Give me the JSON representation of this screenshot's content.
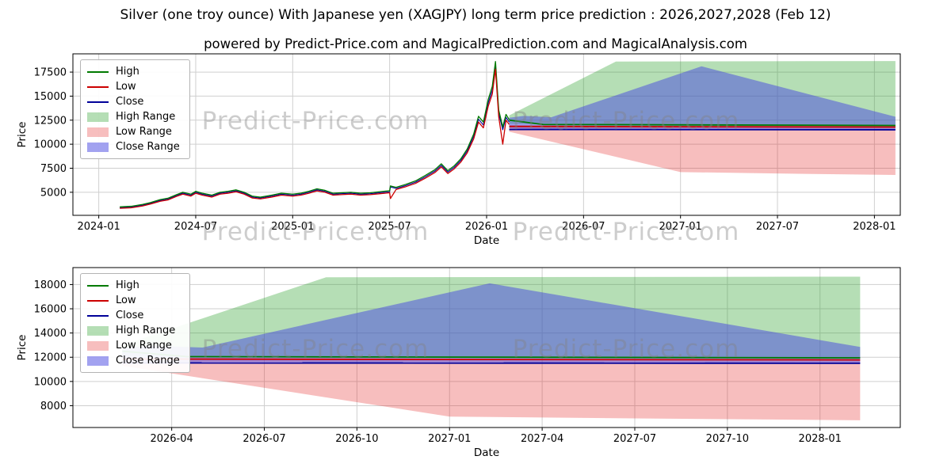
{
  "page": {
    "title": "Silver (one troy ounce) With Japanese yen (XAGJPY) long term price prediction : 2026,2027,2028 (Feb 12)",
    "subtitle": "powered by Predict-Price.com and MagicalPrediction.com and MagicalAnalysis.com",
    "watermark": "Predict-Price.com"
  },
  "colors": {
    "high": "#007a00",
    "low": "#cc0000",
    "close": "#000099",
    "high_range": "rgba(44,160,44,0.35)",
    "low_range": "rgba(230,40,40,0.30)",
    "close_range": "rgba(70,70,225,0.50)"
  },
  "chart_data": [
    {
      "type": "line",
      "title": "",
      "xlabel": "Date",
      "ylabel": "Price",
      "x_unit": "months since 2024-01",
      "xlim": [
        -1.6,
        49.6
      ],
      "ylim": [
        2600,
        19400
      ],
      "grid": true,
      "legend_position": "upper-left",
      "x_ticks": [
        {
          "v": 0,
          "label": "2024-01"
        },
        {
          "v": 6,
          "label": "2024-07"
        },
        {
          "v": 12,
          "label": "2025-01"
        },
        {
          "v": 18,
          "label": "2025-07"
        },
        {
          "v": 24,
          "label": "2026-01"
        },
        {
          "v": 30,
          "label": "2026-07"
        },
        {
          "v": 36,
          "label": "2027-01"
        },
        {
          "v": 42,
          "label": "2027-07"
        },
        {
          "v": 48,
          "label": "2028-01"
        }
      ],
      "y_ticks": [
        5000,
        7500,
        10000,
        12500,
        15000,
        17500
      ],
      "legend": [
        {
          "label": "High",
          "kind": "line",
          "color": "high"
        },
        {
          "label": "Low",
          "kind": "line",
          "color": "low"
        },
        {
          "label": "Close",
          "kind": "line",
          "color": "close"
        },
        {
          "label": "High Range",
          "kind": "patch",
          "color": "high_range"
        },
        {
          "label": "Low Range",
          "kind": "patch",
          "color": "low_range"
        },
        {
          "label": "Close Range",
          "kind": "patch",
          "color": "close_range"
        }
      ],
      "bands": [
        {
          "name": "High Range",
          "color": "high_range",
          "x": [
            25.4,
            32.0,
            49.3
          ],
          "upper": [
            13000,
            18600,
            18650
          ],
          "lower": [
            12100,
            11950,
            11850
          ]
        },
        {
          "name": "Low Range",
          "color": "low_range",
          "x": [
            25.4,
            36.0,
            42.0,
            49.3
          ],
          "upper": [
            12000,
            11850,
            11800,
            11750
          ],
          "lower": [
            11300,
            7100,
            6950,
            6800
          ]
        },
        {
          "name": "Close Range",
          "color": "close_range",
          "x": [
            25.4,
            26.3,
            28.0,
            37.3,
            49.3
          ],
          "upper": [
            12750,
            12950,
            12800,
            18100,
            12850
          ],
          "lower": [
            11650,
            11600,
            11550,
            11500,
            11500
          ]
        }
      ],
      "lines": [
        {
          "name": "Close history",
          "color": "close",
          "width": 1.1,
          "x": [
            1.3,
            2.0,
            2.7,
            3.2,
            3.8,
            4.3,
            4.8,
            5.2,
            5.7,
            6.0,
            6.4,
            7.0,
            7.5,
            8.0,
            8.5,
            9.0,
            9.5,
            10.0,
            10.7,
            11.3,
            12.0,
            12.5,
            13.0,
            13.5,
            14.0,
            14.5,
            15.0,
            15.6,
            16.2,
            16.8,
            17.4,
            18.0,
            18.05,
            18.4,
            19.0,
            19.6,
            20.2,
            20.8,
            21.2,
            21.6,
            22.0,
            22.4,
            22.8,
            23.2,
            23.5,
            23.8,
            24.1,
            24.35,
            24.55,
            24.75,
            25.0,
            25.2,
            25.4
          ],
          "y": [
            3400,
            3450,
            3650,
            3850,
            4150,
            4300,
            4650,
            4900,
            4700,
            5000,
            4800,
            4600,
            4900,
            5000,
            5150,
            4900,
            4500,
            4400,
            4600,
            4800,
            4700,
            4800,
            5000,
            5250,
            5100,
            4800,
            4850,
            4900,
            4800,
            4850,
            4950,
            5050,
            5550,
            5400,
            5700,
            6050,
            6600,
            7200,
            7800,
            7100,
            7600,
            8300,
            9300,
            10800,
            12600,
            12000,
            14300,
            15600,
            18200,
            13200,
            11500,
            12800,
            12300
          ]
        },
        {
          "name": "High history",
          "color": "high",
          "width": 1.3,
          "x": [
            1.3,
            2.0,
            2.7,
            3.2,
            3.8,
            4.3,
            4.8,
            5.2,
            5.7,
            6.0,
            6.4,
            7.0,
            7.5,
            8.0,
            8.5,
            9.0,
            9.5,
            10.0,
            10.7,
            11.3,
            12.0,
            12.5,
            13.0,
            13.5,
            14.0,
            14.5,
            15.0,
            15.6,
            16.2,
            16.8,
            17.4,
            18.0,
            18.05,
            18.4,
            19.0,
            19.6,
            20.2,
            20.8,
            21.2,
            21.6,
            22.0,
            22.4,
            22.8,
            23.2,
            23.5,
            23.8,
            24.1,
            24.35,
            24.55,
            24.75,
            25.0,
            25.2,
            25.4
          ],
          "y": [
            3480,
            3540,
            3730,
            3930,
            4240,
            4390,
            4740,
            5000,
            4800,
            5100,
            4900,
            4700,
            5000,
            5100,
            5250,
            5000,
            4600,
            4490,
            4700,
            4900,
            4800,
            4900,
            5100,
            5360,
            5200,
            4900,
            4950,
            5000,
            4900,
            4950,
            5060,
            5160,
            5660,
            5510,
            5820,
            6180,
            6740,
            7350,
            7960,
            7250,
            7760,
            8470,
            9500,
            11050,
            12900,
            12300,
            14650,
            16000,
            18600,
            13550,
            11800,
            13100,
            12550
          ]
        },
        {
          "name": "Low history",
          "color": "low",
          "width": 1.3,
          "x": [
            1.3,
            2.0,
            2.7,
            3.2,
            3.8,
            4.3,
            4.8,
            5.2,
            5.7,
            6.0,
            6.4,
            7.0,
            7.5,
            8.0,
            8.5,
            9.0,
            9.5,
            10.0,
            10.7,
            11.3,
            12.0,
            12.5,
            13.0,
            13.5,
            14.0,
            14.5,
            15.0,
            15.6,
            16.2,
            16.8,
            17.4,
            18.0,
            18.05,
            18.4,
            19.0,
            19.6,
            20.2,
            20.8,
            21.2,
            21.6,
            22.0,
            22.4,
            22.8,
            23.2,
            23.5,
            23.8,
            24.1,
            24.35,
            24.55,
            24.75,
            25.0,
            25.2,
            25.4
          ],
          "y": [
            3330,
            3380,
            3570,
            3770,
            4060,
            4210,
            4560,
            4800,
            4600,
            4900,
            4700,
            4500,
            4800,
            4900,
            5050,
            4800,
            4400,
            4310,
            4500,
            4700,
            4600,
            4700,
            4900,
            5140,
            5000,
            4700,
            4750,
            4800,
            4700,
            4750,
            4850,
            4950,
            4350,
            5290,
            5580,
            5920,
            6460,
            7050,
            7640,
            6950,
            7440,
            8130,
            9100,
            10550,
            12300,
            11700,
            13950,
            15200,
            17800,
            12850,
            10000,
            12500,
            12050
          ]
        },
        {
          "name": "High forecast",
          "color": "high",
          "width": 1.8,
          "x": [
            25.4,
            27.5,
            49.3
          ],
          "y": [
            12500,
            12050,
            11950
          ]
        },
        {
          "name": "Low forecast",
          "color": "low",
          "width": 1.8,
          "x": [
            25.4,
            49.3
          ],
          "y": [
            11850,
            11780
          ]
        },
        {
          "name": "Close forecast",
          "color": "close",
          "width": 1.8,
          "x": [
            25.4,
            49.3
          ],
          "y": [
            11530,
            11500
          ]
        }
      ]
    },
    {
      "type": "line",
      "title": "",
      "xlabel": "Date",
      "ylabel": "Price",
      "x_unit": "months since 2024-01",
      "xlim": [
        23.8,
        50.6
      ],
      "ylim": [
        6200,
        19400
      ],
      "grid": true,
      "legend_position": "upper-left",
      "x_ticks": [
        {
          "v": 27,
          "label": "2026-04"
        },
        {
          "v": 30,
          "label": "2026-07"
        },
        {
          "v": 33,
          "label": "2026-10"
        },
        {
          "v": 36,
          "label": "2027-01"
        },
        {
          "v": 39,
          "label": "2027-04"
        },
        {
          "v": 42,
          "label": "2027-07"
        },
        {
          "v": 45,
          "label": "2027-10"
        },
        {
          "v": 48,
          "label": "2028-01"
        }
      ],
      "y_ticks": [
        8000,
        10000,
        12000,
        14000,
        16000,
        18000
      ],
      "legend": [
        {
          "label": "High",
          "kind": "line",
          "color": "high"
        },
        {
          "label": "Low",
          "kind": "line",
          "color": "low"
        },
        {
          "label": "Close",
          "kind": "line",
          "color": "close"
        },
        {
          "label": "High Range",
          "kind": "patch",
          "color": "high_range"
        },
        {
          "label": "Low Range",
          "kind": "patch",
          "color": "low_range"
        },
        {
          "label": "Close Range",
          "kind": "patch",
          "color": "close_range"
        }
      ],
      "bands": [
        {
          "name": "High Range",
          "color": "high_range",
          "x": [
            25.4,
            32.0,
            49.3
          ],
          "upper": [
            13000,
            18600,
            18650
          ],
          "lower": [
            12100,
            11950,
            11850
          ]
        },
        {
          "name": "Low Range",
          "color": "low_range",
          "x": [
            25.4,
            36.0,
            42.0,
            49.3
          ],
          "upper": [
            12000,
            11850,
            11800,
            11750
          ],
          "lower": [
            11300,
            7100,
            6950,
            6800
          ]
        },
        {
          "name": "Close Range",
          "color": "close_range",
          "x": [
            25.4,
            26.3,
            28.0,
            37.3,
            49.3
          ],
          "upper": [
            12750,
            12950,
            12800,
            18100,
            12850
          ],
          "lower": [
            11650,
            11600,
            11550,
            11500,
            11500
          ]
        }
      ],
      "lines": [
        {
          "name": "High forecast",
          "color": "high",
          "width": 1.8,
          "x": [
            25.4,
            27.5,
            49.3
          ],
          "y": [
            12500,
            12050,
            11950
          ]
        },
        {
          "name": "Low forecast",
          "color": "low",
          "width": 1.8,
          "x": [
            25.4,
            49.3
          ],
          "y": [
            11850,
            11780
          ]
        },
        {
          "name": "Close forecast",
          "color": "close",
          "width": 1.8,
          "x": [
            25.4,
            49.3
          ],
          "y": [
            11530,
            11500
          ]
        }
      ]
    }
  ]
}
